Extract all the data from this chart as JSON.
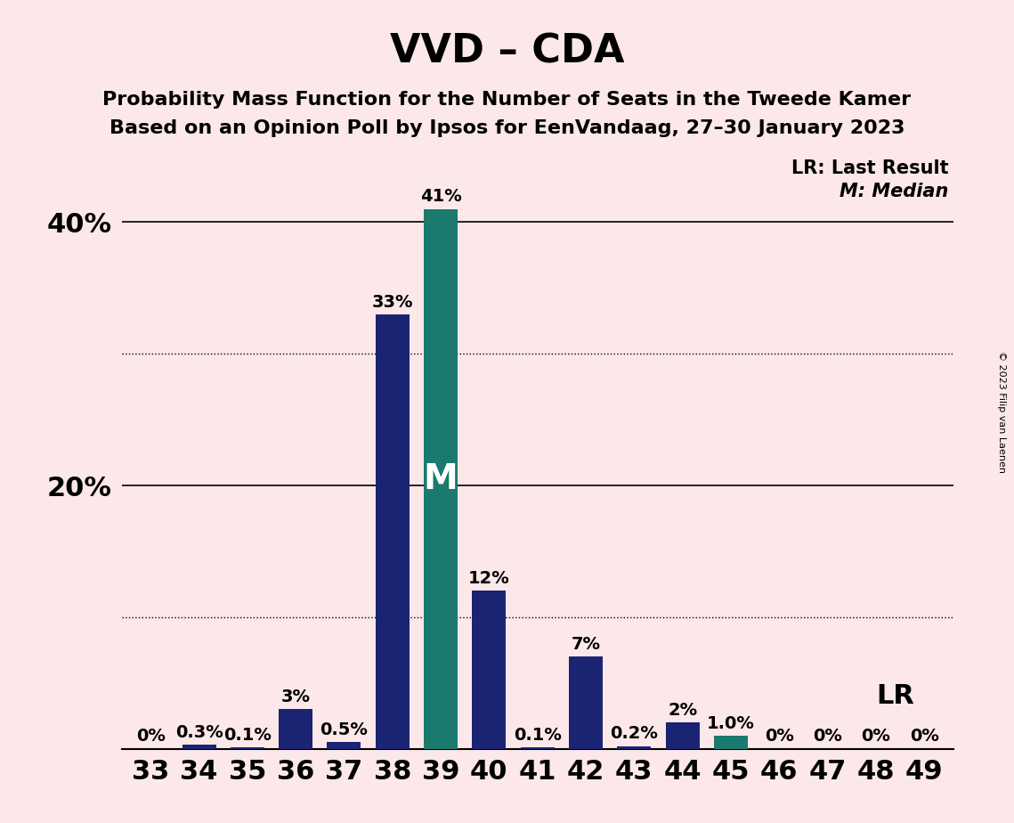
{
  "title": "VVD – CDA",
  "subtitle1": "Probability Mass Function for the Number of Seats in the Tweede Kamer",
  "subtitle2": "Based on an Opinion Poll by Ipsos for EenVandaag, 27–30 January 2023",
  "seats": [
    33,
    34,
    35,
    36,
    37,
    38,
    39,
    40,
    41,
    42,
    43,
    44,
    45,
    46,
    47,
    48,
    49
  ],
  "probabilities": [
    0.0,
    0.3,
    0.1,
    3.0,
    0.5,
    33.0,
    41.0,
    12.0,
    0.1,
    7.0,
    0.2,
    2.0,
    1.0,
    0.0,
    0.0,
    0.0,
    0.0
  ],
  "labels": [
    "0%",
    "0.3%",
    "0.1%",
    "3%",
    "0.5%",
    "33%",
    "41%",
    "12%",
    "0.1%",
    "7%",
    "0.2%",
    "2%",
    "1.0%",
    "0%",
    "0%",
    "0%",
    "0%"
  ],
  "median_seat": 39,
  "last_result_seat": 45,
  "bar_color_normal": "#1a2472",
  "bar_color_median": "#1a7a6e",
  "bar_color_lr": "#1a7a6e",
  "background_color": "#fce8e8",
  "legend_lr": "LR: Last Result",
  "legend_m": "M: Median",
  "copyright": "© 2023 Filip van Laenen",
  "ylim": [
    0,
    45
  ],
  "solid_lines": [
    20,
    40
  ],
  "dotted_lines": [
    10,
    30
  ],
  "ytick_positions": [
    20,
    40
  ],
  "ytick_labels": [
    "20%",
    "40%"
  ],
  "label_fontsize": 14,
  "title_fontsize": 32,
  "subtitle_fontsize": 16,
  "axis_fontsize": 22,
  "m_label_fontsize": 28,
  "lr_fontsize": 22,
  "legend_fontsize": 15
}
